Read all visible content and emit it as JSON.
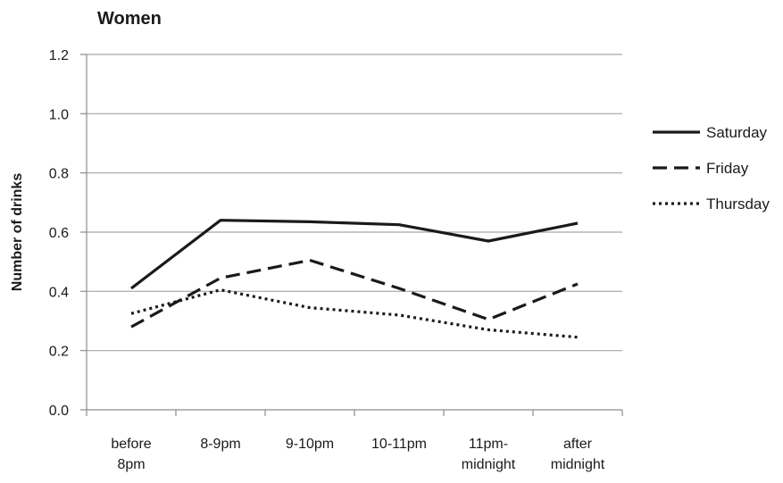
{
  "chart_data": {
    "type": "line",
    "title": "Women",
    "xlabel": "",
    "ylabel": "Number of drinks",
    "categories": [
      [
        "before",
        "8pm"
      ],
      [
        "8-9pm"
      ],
      [
        "9-10pm"
      ],
      [
        "10-11pm"
      ],
      [
        "11pm-",
        "midnight"
      ],
      [
        "after",
        "midnight"
      ]
    ],
    "ylim": [
      0,
      1.2
    ],
    "yticks": [
      "0.0",
      "0.2",
      "0.4",
      "0.6",
      "0.8",
      "1.0",
      "1.2"
    ],
    "ytick_values": [
      0,
      0.2,
      0.4,
      0.6,
      0.8,
      1.0,
      1.2
    ],
    "grid": true,
    "legend_position": "right",
    "series": [
      {
        "name": "Saturday",
        "style": "solid",
        "color": "#1a1a1a",
        "values": [
          0.41,
          0.64,
          0.635,
          0.625,
          0.57,
          0.63
        ]
      },
      {
        "name": "Friday",
        "style": "dashed",
        "color": "#1a1a1a",
        "values": [
          0.28,
          0.445,
          0.505,
          0.41,
          0.305,
          0.425
        ]
      },
      {
        "name": "Thursday",
        "style": "dotted",
        "color": "#1a1a1a",
        "values": [
          0.325,
          0.405,
          0.345,
          0.32,
          0.27,
          0.245
        ]
      }
    ]
  }
}
